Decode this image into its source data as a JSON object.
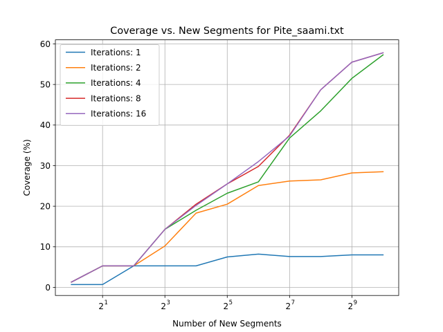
{
  "chart_data": {
    "type": "line",
    "title": "Coverage vs. New Segments for Pite_saami.txt",
    "xlabel": "Number of New Segments",
    "ylabel": "Coverage (%)",
    "x_scale": "log2",
    "x": [
      1,
      2,
      4,
      8,
      16,
      32,
      64,
      128,
      256,
      512,
      1024
    ],
    "xlim": [
      0.7,
      1450
    ],
    "ylim": [
      -2,
      61
    ],
    "x_ticks": [
      {
        "value": 2,
        "base": "2",
        "exp": "1"
      },
      {
        "value": 8,
        "base": "2",
        "exp": "3"
      },
      {
        "value": 32,
        "base": "2",
        "exp": "5"
      },
      {
        "value": 128,
        "base": "2",
        "exp": "7"
      },
      {
        "value": 512,
        "base": "2",
        "exp": "9"
      }
    ],
    "y_ticks": [
      0,
      10,
      20,
      30,
      40,
      50,
      60
    ],
    "grid": true,
    "legend_position": "upper-left",
    "series": [
      {
        "name": "Iterations: 1",
        "color": "#1f77b4",
        "values": [
          0.7,
          0.7,
          5.3,
          5.3,
          5.3,
          7.5,
          8.2,
          7.6,
          7.6,
          8.0,
          8.0
        ]
      },
      {
        "name": "Iterations: 2",
        "color": "#ff7f0e",
        "values": [
          1.3,
          5.3,
          5.3,
          10.2,
          18.3,
          20.5,
          25.1,
          26.2,
          26.5,
          28.2,
          28.5
        ]
      },
      {
        "name": "Iterations: 4",
        "color": "#2ca02c",
        "values": [
          1.3,
          5.3,
          5.3,
          14.3,
          19.0,
          23.2,
          26.0,
          36.8,
          43.5,
          51.5,
          57.3
        ]
      },
      {
        "name": "Iterations: 8",
        "color": "#d62728",
        "values": [
          1.3,
          5.3,
          5.3,
          14.3,
          20.5,
          25.5,
          29.8,
          37.5,
          48.7,
          55.5,
          57.8
        ]
      },
      {
        "name": "Iterations: 16",
        "color": "#9467bd",
        "values": [
          1.3,
          5.3,
          5.3,
          14.3,
          20.2,
          25.5,
          31.0,
          37.3,
          48.7,
          55.5,
          57.8
        ]
      }
    ]
  }
}
